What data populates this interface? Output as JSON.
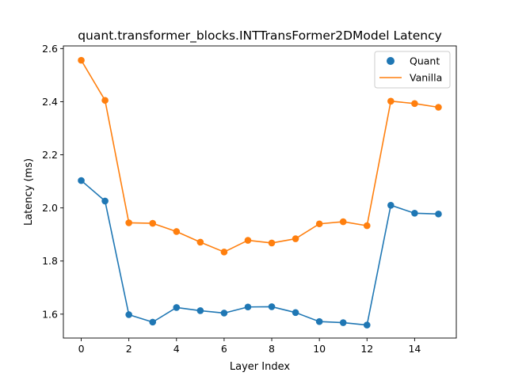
{
  "chart_data": {
    "type": "line",
    "title": "quant.transformer_blocks.INTTransFormer2DModel Latency",
    "xlabel": "Layer Index",
    "ylabel": "Latency (ms)",
    "x": [
      0,
      1,
      2,
      3,
      4,
      5,
      6,
      7,
      8,
      9,
      10,
      11,
      12,
      13,
      14,
      15
    ],
    "xlim": [
      -0.75,
      15.75
    ],
    "ylim": [
      1.51,
      2.61
    ],
    "xticks": [
      0,
      2,
      4,
      6,
      8,
      10,
      12,
      14
    ],
    "yticks": [
      1.6,
      1.8,
      2.0,
      2.2,
      2.4,
      2.6
    ],
    "xtick_labels": [
      "0",
      "2",
      "4",
      "6",
      "8",
      "10",
      "12",
      "14"
    ],
    "ytick_labels": [
      "1.6",
      "1.8",
      "2.0",
      "2.2",
      "2.4",
      "2.6"
    ],
    "grid": false,
    "legend_position": "top-right",
    "legend": [
      {
        "label": "Quant",
        "marker": "point"
      },
      {
        "label": "Vanilla",
        "marker": "line"
      }
    ],
    "series": [
      {
        "name": "Quant",
        "color": "#1f77b4",
        "values": [
          2.103,
          2.026,
          1.598,
          1.57,
          1.625,
          1.613,
          1.604,
          1.627,
          1.628,
          1.606,
          1.572,
          1.568,
          1.559,
          2.01,
          1.98,
          1.977
        ]
      },
      {
        "name": "Vanilla",
        "color": "#ff7f0e",
        "values": [
          2.556,
          2.405,
          1.944,
          1.942,
          1.911,
          1.871,
          1.834,
          1.878,
          1.868,
          1.884,
          1.94,
          1.948,
          1.933,
          2.402,
          2.393,
          2.379
        ]
      }
    ]
  }
}
